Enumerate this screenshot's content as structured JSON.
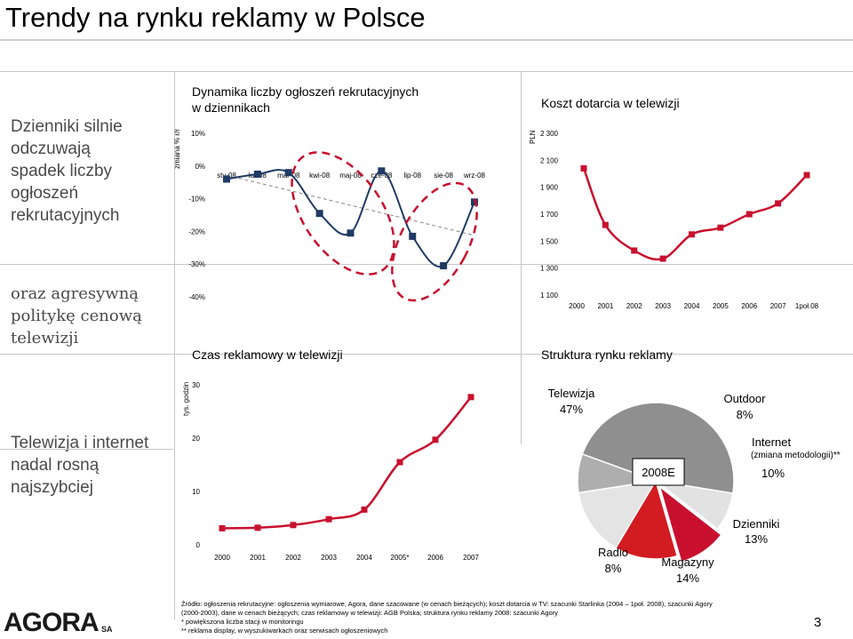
{
  "title": "Trendy na rynku reklamy w Polsce",
  "left": {
    "block1": [
      "Dzienniki silnie",
      "odczuwają",
      "spadek liczby",
      "ogłoszeń",
      "rekrutacyjnych"
    ],
    "block2": [
      "oraz agresywną",
      "politykę cenową",
      "telewizji"
    ],
    "block3": [
      "Telewizja i internet",
      "nadal rosną",
      "najszybciej"
    ]
  },
  "footer": {
    "lines": [
      "Źródło: ogłoszenia rekrutacyjne: ogłoszenia wymiarowe, Agora, dane szacowane (w cenach bieżących); koszt dotarcia w TV: szacunki Starlinka (2004 – 1poł. 2008), szacunki Agory",
      "(2000-2003), dane w cenach bieżących; czas reklamowy w telewizji: AGB Polska; struktura rynku reklamy 2008: szacunki Agory",
      "* powiększona liczba stacji w monitoringu",
      "** reklama display, w wyszukiwarkach oraz serwisach ogłoszeniowych"
    ]
  },
  "page_number": "3",
  "logo": {
    "text": "AGORA",
    "suffix": "SA"
  },
  "colors": {
    "navy": "#1f3a63",
    "red": "#c8102e",
    "dash": "#c8102e"
  },
  "chart_data": [
    {
      "type": "line",
      "title": "Dynamika liczby ogłoszeń rekrutacyjnych w dziennikach",
      "title_lines": [
        "Dynamika liczby ogłoszeń rekrutacyjnych",
        "w dziennikach"
      ],
      "ylabel": "zmiana % r/r",
      "ylim": [
        -40,
        10
      ],
      "yticks": [
        "10%",
        "0%",
        "-10%",
        "-20%",
        "-30%",
        "-40%"
      ],
      "categories": [
        "sty-08",
        "lut-08",
        "mar-08",
        "kwi-08",
        "maj-08",
        "cze-08",
        "lip-08",
        "sie-08",
        "wrz-08"
      ],
      "values": [
        -4,
        -2.5,
        -2,
        -14.5,
        -20.5,
        -1.5,
        -21.5,
        -30.5,
        -11
      ],
      "trend": "dashed"
    },
    {
      "type": "line",
      "title": "Koszt dotarcia w telewizji",
      "ylabel": "PLN",
      "ylim": [
        1100,
        2300
      ],
      "yticks": [
        "2 300",
        "2 100",
        "1 900",
        "1 700",
        "1 500",
        "1 300",
        "1 100"
      ],
      "categories": [
        "2000",
        "2001",
        "2002",
        "2003",
        "2004",
        "2005",
        "2006",
        "2007",
        "1poł.08"
      ],
      "values": [
        2040,
        1620,
        1430,
        1370,
        1550,
        1600,
        1700,
        1780,
        1990
      ]
    },
    {
      "type": "line",
      "title": "Czas reklamowy w telewizji",
      "ylabel": "tys. godzin",
      "ylim": [
        0,
        30
      ],
      "yticks": [
        "30",
        "20",
        "10",
        "0"
      ],
      "categories": [
        "2000",
        "2001",
        "2002",
        "2003",
        "2004",
        "2005*",
        "2006",
        "2007"
      ],
      "values": [
        3.1,
        3.2,
        3.7,
        4.8,
        6.6,
        15.5,
        19.7,
        27.7
      ]
    },
    {
      "type": "pie",
      "title": "Struktura rynku reklamy",
      "center_label": "2008E",
      "slices": [
        {
          "name": "Telewizja",
          "value": 47,
          "label": "47%",
          "color": "#8a8a8a"
        },
        {
          "name": "Outdoor",
          "value": 8,
          "label": "8%",
          "color": "#e2e2e2"
        },
        {
          "name": "Internet",
          "sub": "(zmiana metodologii)**",
          "value": 10,
          "label": "10%",
          "color": "#c8102e"
        },
        {
          "name": "Dzienniki",
          "value": 13,
          "label": "13%",
          "color": "#d21c22"
        },
        {
          "name": "Magazyny",
          "value": 14,
          "label": "14%",
          "color": "#e4e4e4"
        },
        {
          "name": "Radio",
          "value": 8,
          "label": "8%",
          "color": "#aaaaaa"
        }
      ]
    }
  ]
}
